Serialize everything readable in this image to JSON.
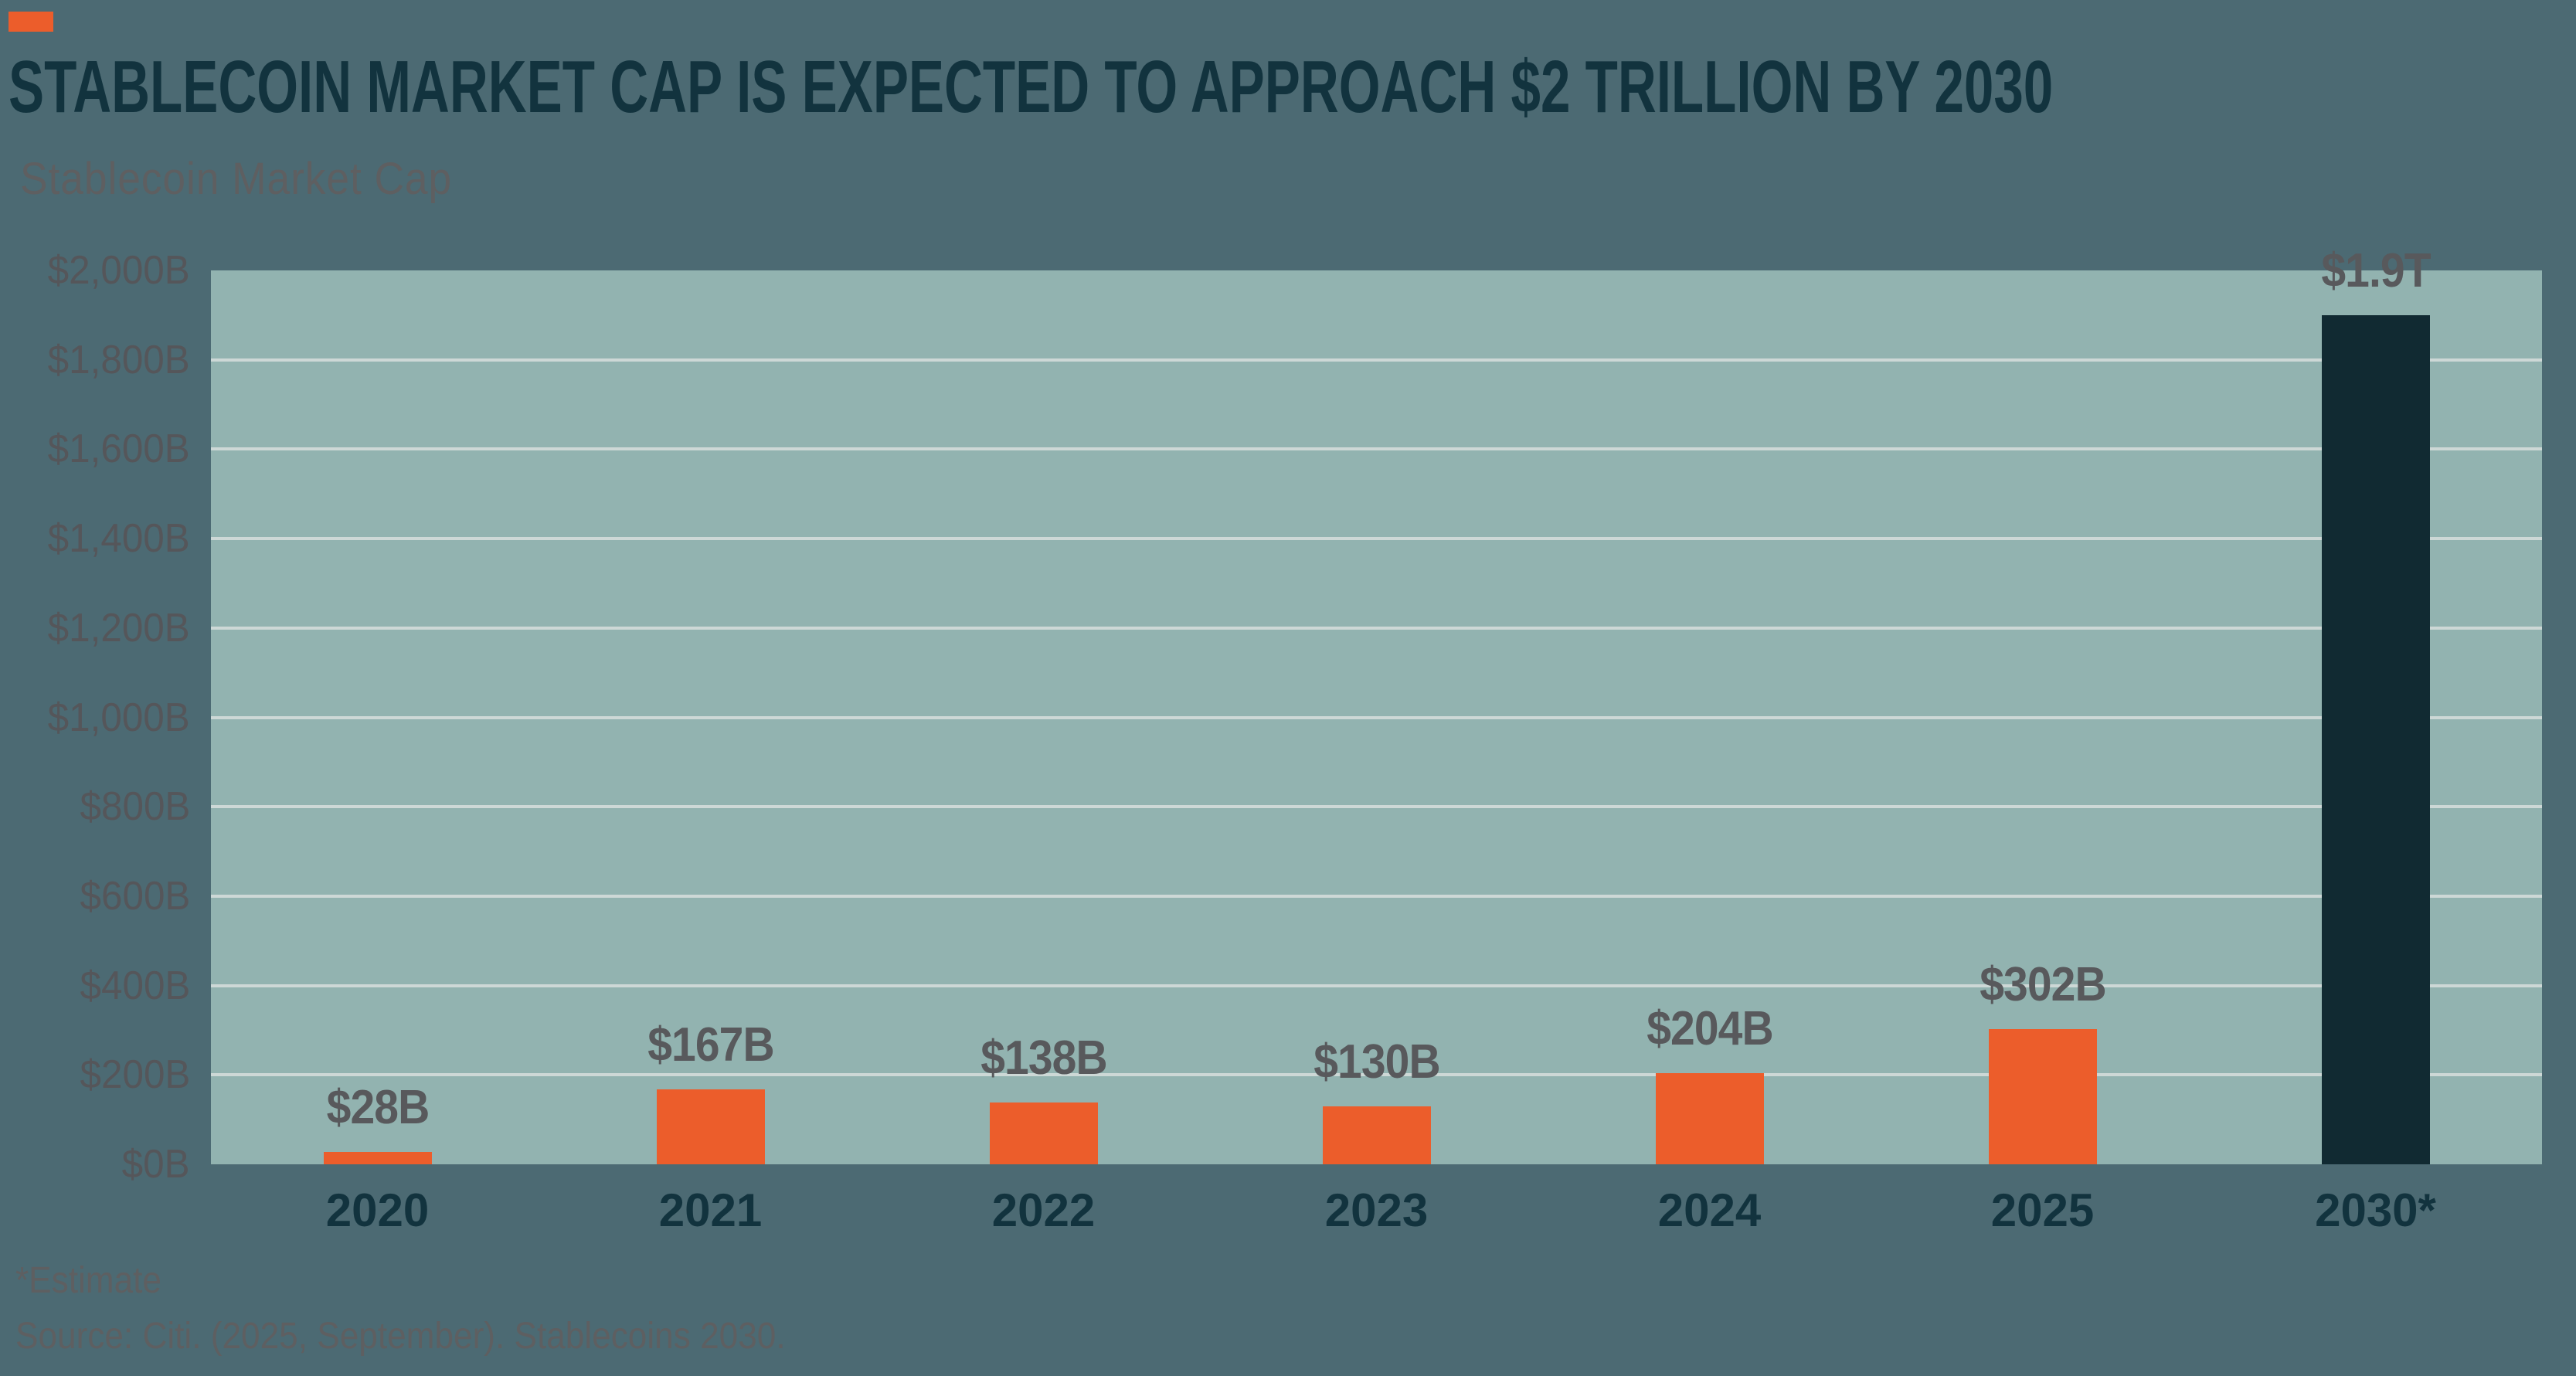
{
  "header": {
    "title": "STABLECOIN MARKET CAP IS EXPECTED TO APPROACH $2 TRILLION BY 2030",
    "subtitle": "Stablecoin Market Cap"
  },
  "chart_data": {
    "type": "bar",
    "title": "Stablecoin Market Cap",
    "categories": [
      "2020",
      "2021",
      "2022",
      "2023",
      "2024",
      "2025",
      "2030*"
    ],
    "values": [
      28,
      167,
      138,
      130,
      204,
      302,
      1900
    ],
    "value_labels": [
      "$28B",
      "$167B",
      "$138B",
      "$130B",
      "$204B",
      "$302B",
      "$1.9T"
    ],
    "bar_colors": [
      "#EC5D2B",
      "#EC5D2B",
      "#EC5D2B",
      "#EC5D2B",
      "#EC5D2B",
      "#EC5D2B",
      "#112A32"
    ],
    "xlabel": "",
    "ylabel": "",
    "ylim": [
      0,
      2000
    ],
    "ytick_step": 200,
    "ytick_labels": [
      "$0B",
      "$200B",
      "$400B",
      "$600B",
      "$800B",
      "$1,000B",
      "$1,200B",
      "$1,400B",
      "$1,600B",
      "$1,800B",
      "$2,000B"
    ],
    "grid": true,
    "legend": false
  },
  "footer": {
    "note": "*Estimate",
    "source": "Source: Citi. (2025, September). Stablecoins 2030."
  },
  "colors": {
    "background": "#4C6A73",
    "plot_background": "#92B3B0",
    "gridline": "#CDD8D6",
    "accent_orange": "#EC5D2B",
    "projection_bar_dark": "#112A32",
    "title_teal": "#12333E",
    "axis_label_gray": "#55565A",
    "value_label_gray": "#58595C",
    "muted_text_gray": "#5E5F61"
  }
}
